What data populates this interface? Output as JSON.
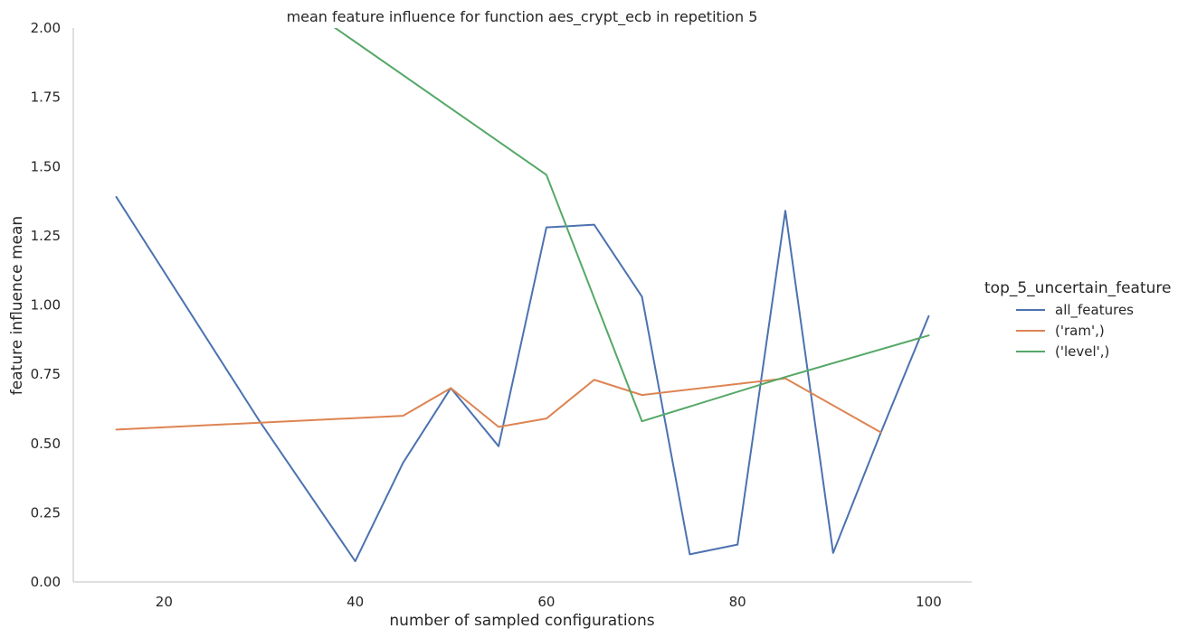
{
  "chart_data": {
    "type": "line",
    "title": "mean feature influence for function aes_crypt_ecb in repetition 5",
    "xlabel": "number of sampled configurations",
    "ylabel": "feature influence mean",
    "xlim": [
      10.5,
      104.5
    ],
    "ylim": [
      0,
      2
    ],
    "x_ticks": [
      20,
      40,
      60,
      80,
      100
    ],
    "y_ticks": [
      0.0,
      0.25,
      0.5,
      0.75,
      1.0,
      1.25,
      1.5,
      1.75,
      2.0
    ],
    "y_tick_labels": [
      "0.00",
      "0.25",
      "0.50",
      "0.75",
      "1.00",
      "1.25",
      "1.50",
      "1.75",
      "2.00"
    ],
    "grid": false,
    "legend": {
      "title": "top_5_uncertain_feature",
      "placement": "right"
    },
    "series": [
      {
        "name": "all_features",
        "color": "#4c72b0",
        "x": [
          15,
          30,
          40,
          45,
          50,
          55,
          60,
          65,
          70,
          75,
          80,
          85,
          90,
          95,
          100
        ],
        "y": [
          1.39,
          0.58,
          0.075,
          0.43,
          0.7,
          0.49,
          1.28,
          1.29,
          1.03,
          0.1,
          0.135,
          1.34,
          0.105,
          0.54,
          0.96
        ]
      },
      {
        "name": "('ram',)",
        "color": "#dd8452",
        "x": [
          15,
          45,
          50,
          55,
          60,
          65,
          70,
          85,
          95
        ],
        "y": [
          0.55,
          0.6,
          0.7,
          0.56,
          0.59,
          0.73,
          0.675,
          0.735,
          0.54
        ]
      },
      {
        "name": "('level',)",
        "color": "#55a868",
        "x": [
          15,
          60,
          70,
          85,
          100
        ],
        "y": [
          2.55,
          1.47,
          0.58,
          0.74,
          0.89
        ]
      }
    ]
  }
}
